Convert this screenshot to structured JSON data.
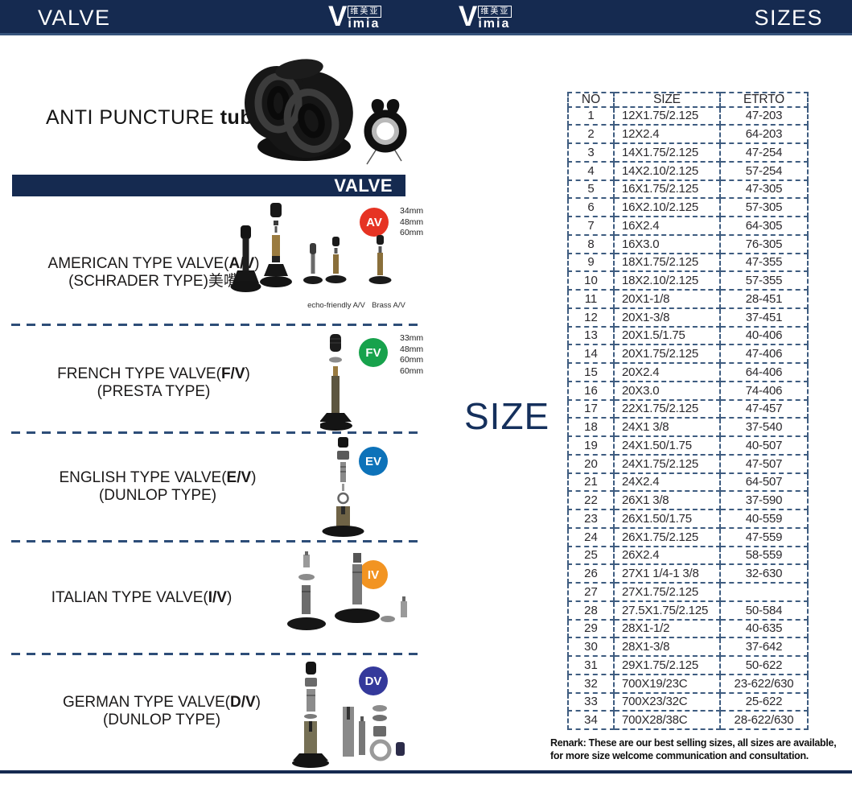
{
  "header": {
    "left_title": "VALVE",
    "right_title": "SIZES",
    "logo": {
      "v": "V",
      "cn": "维美亚",
      "rest": "imia"
    }
  },
  "intro": {
    "title_light": "ANTI PUNCTURE ",
    "title_bold": "tube"
  },
  "valve_banner": "VALVE",
  "size_big_label": "SIZE",
  "sections": [
    {
      "prefix": "AMERICAN TYPE VALVE(",
      "bold": "A/V",
      "suffix": ")",
      "subtitle": "(SCHRADER TYPE)美嘴",
      "badge": "AV",
      "badge_color": "#e63323",
      "sizes": [
        "34mm",
        "48mm",
        "60mm"
      ],
      "captions": [
        "echo-friendly A/V",
        "Brass  A/V"
      ]
    },
    {
      "prefix": "FRENCH TYPE VALVE(",
      "bold": "F/V",
      "suffix": ")",
      "subtitle": "(PRESTA TYPE)",
      "badge": "FV",
      "badge_color": "#17a24c",
      "sizes": [
        "33mm",
        "48mm",
        "60mm",
        "60mm"
      ],
      "captions": []
    },
    {
      "prefix": "ENGLISH TYPE VALVE(",
      "bold": "E/V",
      "suffix": ")",
      "subtitle": "(DUNLOP TYPE)",
      "badge": "EV",
      "badge_color": "#0d72b9",
      "sizes": [],
      "captions": []
    },
    {
      "prefix": "ITALIAN TYPE VALVE(",
      "bold": "I/V",
      "suffix": ")",
      "subtitle": "",
      "badge": "IV",
      "badge_color": "#f29422",
      "sizes": [],
      "captions": []
    },
    {
      "prefix": "GERMAN TYPE VALVE(",
      "bold": "D/V",
      "suffix": ")",
      "subtitle": "(DUNLOP TYPE)",
      "badge": "DV",
      "badge_color": "#34399b",
      "sizes": [],
      "captions": []
    }
  ],
  "table": {
    "headers": [
      "NO",
      "SIZE",
      "ETRTO"
    ],
    "rows": [
      [
        "1",
        "12X1.75/2.125",
        "47-203"
      ],
      [
        "2",
        "12X2.4",
        "64-203"
      ],
      [
        "3",
        "14X1.75/2.125",
        "47-254"
      ],
      [
        "4",
        "14X2.10/2.125",
        "57-254"
      ],
      [
        "5",
        "16X1.75/2.125",
        "47-305"
      ],
      [
        "6",
        "16X2.10/2.125",
        "57-305"
      ],
      [
        "7",
        "16X2.4",
        "64-305"
      ],
      [
        "8",
        "16X3.0",
        "76-305"
      ],
      [
        "9",
        "18X1.75/2.125",
        "47-355"
      ],
      [
        "10",
        "18X2.10/2.125",
        "57-355"
      ],
      [
        "11",
        "20X1-1/8",
        "28-451"
      ],
      [
        "12",
        "20X1-3/8",
        "37-451"
      ],
      [
        "13",
        "20X1.5/1.75",
        "40-406"
      ],
      [
        "14",
        "20X1.75/2.125",
        "47-406"
      ],
      [
        "15",
        "20X2.4",
        "64-406"
      ],
      [
        "16",
        "20X3.0",
        "74-406"
      ],
      [
        "17",
        "22X1.75/2.125",
        "47-457"
      ],
      [
        "18",
        "24X1 3/8",
        "37-540"
      ],
      [
        "19",
        "24X1.50/1.75",
        "40-507"
      ],
      [
        "20",
        "24X1.75/2.125",
        "47-507"
      ],
      [
        "21",
        "24X2.4",
        "64-507"
      ],
      [
        "22",
        "26X1 3/8",
        "37-590"
      ],
      [
        "23",
        "26X1.50/1.75",
        "40-559"
      ],
      [
        "24",
        "26X1.75/2.125",
        "47-559"
      ],
      [
        "25",
        "26X2.4",
        "58-559"
      ],
      [
        "26",
        "27X1 1/4-1 3/8",
        "32-630"
      ],
      [
        "27",
        "27X1.75/2.125",
        ""
      ],
      [
        "28",
        "27.5X1.75/2.125",
        "50-584"
      ],
      [
        "29",
        "28X1-1/2",
        "40-635"
      ],
      [
        "30",
        "28X1-3/8",
        "37-642"
      ],
      [
        "31",
        "29X1.75/2.125",
        "50-622"
      ],
      [
        "32",
        "700X19/23C",
        "23-622/630"
      ],
      [
        "33",
        "700X23/32C",
        "25-622"
      ],
      [
        "34",
        "700X28/38C",
        "28-622/630"
      ]
    ]
  },
  "remark": {
    "line1": "Renark: These are our best selling sizes, all sizes are available,",
    "line2": "for more size welcome communication and consultation."
  },
  "colors": {
    "navy": "#152a50",
    "table_border": "#3e5c80",
    "badge_av": "#e63323",
    "badge_fv": "#17a24c",
    "badge_ev": "#0d72b9",
    "badge_iv": "#f29422",
    "badge_dv": "#34399b"
  }
}
